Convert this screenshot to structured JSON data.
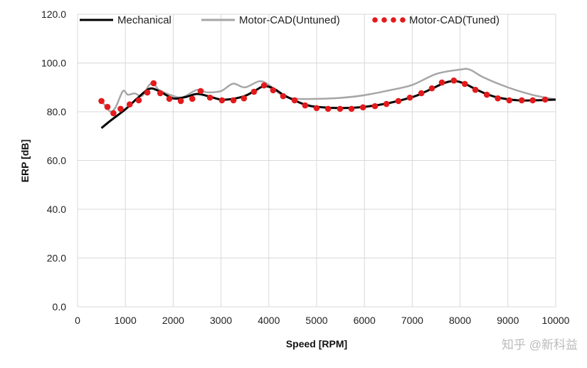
{
  "chart_data": {
    "type": "line",
    "title": "",
    "xlabel": "Speed [RPM]",
    "ylabel": "ERP [dB]",
    "xlim": [
      0,
      10000
    ],
    "ylim": [
      0,
      120
    ],
    "xticks": [
      "0",
      "1000",
      "2000",
      "3000",
      "4000",
      "5000",
      "6000",
      "7000",
      "8000",
      "9000",
      "10000"
    ],
    "yticks": [
      "0.0",
      "20.0",
      "40.0",
      "60.0",
      "80.0",
      "100.0",
      "120.0"
    ],
    "grid": true,
    "legend_position": "top",
    "series": [
      {
        "name": "Mechanical",
        "color": "#000000",
        "style": "line",
        "x": [
          500,
          700,
          1000,
          1250,
          1500,
          1700,
          2000,
          2250,
          2500,
          2750,
          3000,
          3250,
          3500,
          3700,
          3900,
          4100,
          4300,
          4500,
          4750,
          5000,
          5500,
          6000,
          6500,
          7000,
          7250,
          7500,
          7700,
          7900,
          8100,
          8300,
          8550,
          8800,
          9200,
          9600,
          10000
        ],
        "y": [
          73.3,
          76.5,
          81,
          85.5,
          89.4,
          88.5,
          85.5,
          86,
          87.3,
          86.3,
          85,
          85.3,
          86.5,
          88.5,
          90.5,
          89.5,
          87,
          85,
          83,
          82,
          81.5,
          82,
          83.5,
          86,
          88,
          90.3,
          92,
          92.6,
          91.5,
          89.5,
          87.3,
          85.8,
          84.7,
          84.7,
          85
        ]
      },
      {
        "name": "Motor-CAD(Untuned)",
        "color": "#a6a6a6",
        "style": "line",
        "x": [
          500,
          600,
          700,
          800,
          950,
          1050,
          1200,
          1350,
          1500,
          1600,
          1700,
          2000,
          2200,
          2500,
          2700,
          3000,
          3250,
          3500,
          3800,
          4000,
          4300,
          4600,
          5000,
          5500,
          6000,
          6500,
          7000,
          7500,
          8000,
          8200,
          8500,
          9000,
          9500,
          10000
        ],
        "y": [
          84.5,
          82,
          80,
          82,
          88.5,
          87,
          87.5,
          86.5,
          91,
          91.5,
          89,
          86.5,
          86,
          89,
          88,
          88.5,
          91.5,
          90,
          92.5,
          91,
          86.5,
          85.3,
          85.3,
          85.7,
          86.8,
          88.7,
          91,
          95.5,
          97.3,
          97.3,
          94,
          90,
          87,
          85
        ]
      },
      {
        "name": "Motor-CAD(Tuned)",
        "color": "#e31a1c",
        "style": "dots",
        "x": [
          500,
          625,
          750,
          900,
          1090,
          1280,
          1460,
          1590,
          1730,
          1920,
          2160,
          2400,
          2575,
          2770,
          3020,
          3260,
          3480,
          3690,
          3900,
          4090,
          4300,
          4540,
          4760,
          5000,
          5240,
          5490,
          5730,
          5970,
          6220,
          6460,
          6710,
          6950,
          7190,
          7410,
          7620,
          7870,
          8100,
          8320,
          8560,
          8790,
          9030,
          9290,
          9520,
          9780
        ],
        "y": [
          84.4,
          82,
          79.4,
          81.2,
          83,
          84.7,
          87.9,
          91.7,
          87.6,
          85.3,
          84.4,
          85.3,
          88.5,
          85.8,
          84.7,
          84.7,
          85.5,
          88.2,
          90.8,
          88.8,
          86.4,
          84.7,
          82.6,
          81.5,
          81.2,
          81.2,
          81.2,
          81.8,
          82.3,
          83.2,
          84.4,
          85.8,
          87.6,
          89.6,
          92,
          92.8,
          91.4,
          89,
          87,
          85.5,
          84.7,
          84.7,
          84.7,
          85
        ]
      }
    ]
  },
  "watermark": "知乎 @新科益"
}
